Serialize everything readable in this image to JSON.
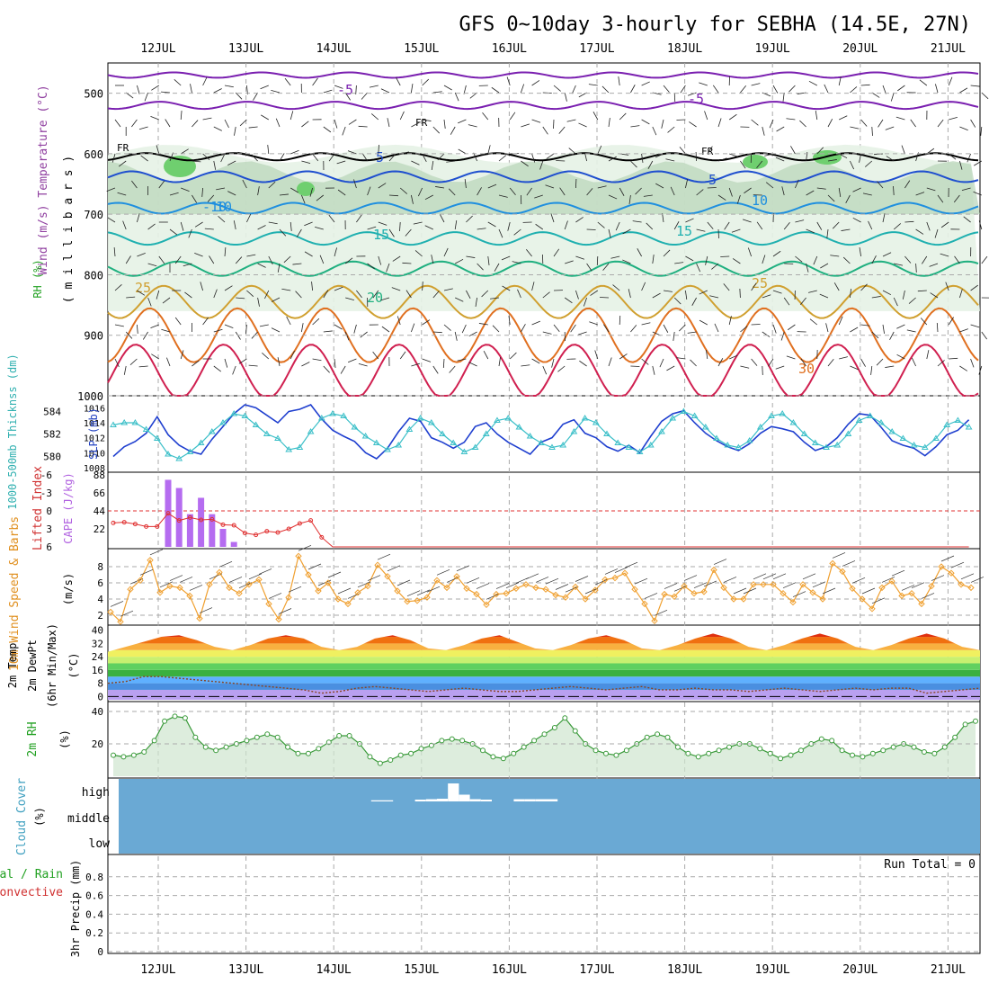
{
  "title": "GFS 0~10day 3-hourly for SEBHA (14.5E, 27N)",
  "days": [
    "12JUL",
    "13JUL",
    "14JUL",
    "15JUL",
    "16JUL",
    "17JUL",
    "18JUL",
    "19JUL",
    "20JUL",
    "21JUL"
  ],
  "colors": {
    "grid": "#aaaaaa",
    "rh_fill": "#e6f2e6",
    "rh_fill2": "#b8d4b8",
    "rh_fill3": "#6fcf6f",
    "slp": "#1f3fcf",
    "thickness": "#3bbfc8",
    "lifted": "#e03030",
    "cape": "#b56cf0",
    "wind": "#f0a030",
    "rh2m_line": "#3a9a3a",
    "rh2m_fill": "#cfe6cf",
    "cloud": "#6aa9d4",
    "freezing": "#000000"
  },
  "panels": {
    "profile": {
      "ylabel_wind": "Wind (m/s)",
      "ylabel_temp": "Temperature (°C)",
      "ylabel_rh": "RH (%)",
      "ylabel_mb": "( m i l l i b a r s )",
      "y_ticks": [
        "500",
        "600",
        "700",
        "800",
        "900",
        "1000"
      ],
      "fr_label": "FR",
      "contour_labels": [
        "-5",
        "-5",
        "-10",
        "5",
        "5",
        "10",
        "10",
        "15",
        "15",
        "20",
        "25",
        "25",
        "30"
      ]
    },
    "slp": {
      "ylabel_thick": "1000-500mb Thicknss (dm)",
      "ylabel_slp": "SLP (mb)",
      "left_ticks": [
        "584",
        "582",
        "580"
      ],
      "right_ticks": [
        "1016",
        "1014",
        "1012",
        "1010",
        "1008"
      ]
    },
    "cape": {
      "ylabel_li": "Lifted Index",
      "ylabel_cape": "CAPE (J/kg)",
      "left_ticks": [
        "-6",
        "-3",
        "0",
        "3",
        "6"
      ],
      "right_ticks": [
        "88",
        "66",
        "44",
        "22"
      ]
    },
    "wind10m": {
      "ylabel": "10m Wind Speed & Barbs",
      "unit": "(m/s)",
      "ticks": [
        "8",
        "6",
        "4",
        "2"
      ]
    },
    "temp2m": {
      "ylabel1": "2m Temp",
      "ylabel2": "2m DewPt",
      "ylabel3": "(6hr Min/Max)",
      "unit": "(°C)",
      "ticks": [
        "40",
        "32",
        "24",
        "16",
        "8",
        "0"
      ]
    },
    "rh2m": {
      "ylabel": "2m RH",
      "unit": "(%)",
      "ticks": [
        "40",
        "20"
      ]
    },
    "cloud": {
      "ylabel": "Cloud Cover",
      "unit": "(%)",
      "levels": [
        "high",
        "middle",
        "low"
      ]
    },
    "precip": {
      "ylabel1": "Total / Rain",
      "ylabel2": "Convective",
      "ylabel3": "3hr Precip (mm)",
      "ticks": [
        "0.8",
        "0.6",
        "0.4",
        "0.2",
        "0"
      ],
      "run_total": "Run Total = 0"
    }
  },
  "chart_data": [
    {
      "type": "line",
      "name": "SLP and 1000-500mb Thickness",
      "x_step_hours": 3,
      "series": [
        {
          "name": "SLP (mb)",
          "values": [
            1009.5,
            1010.8,
            1011.5,
            1012.6,
            1014.8,
            1012.4,
            1011.0,
            1010.2,
            1009.8,
            1011.8,
            1013.5,
            1015.2,
            1016.4,
            1016.0,
            1015.0,
            1014.0,
            1015.5,
            1015.8,
            1016.4,
            1014.5,
            1013.0,
            1012.2,
            1011.5,
            1010.0,
            1009.2,
            1010.6,
            1012.8,
            1014.6,
            1014.2,
            1012.0,
            1011.4,
            1010.6,
            1011.4,
            1013.5,
            1014.0,
            1012.5,
            1011.4,
            1010.6,
            1009.8,
            1011.4,
            1012.0,
            1013.8,
            1014.4,
            1012.6,
            1012.0,
            1010.8,
            1010.2,
            1011.0,
            1010.0,
            1012.2,
            1014.2,
            1015.2,
            1015.6,
            1014.0,
            1012.6,
            1011.6,
            1010.8,
            1010.3,
            1011.2,
            1012.6,
            1013.5,
            1013.2,
            1012.8,
            1011.4,
            1010.3,
            1010.8,
            1012.0,
            1013.8,
            1015.2,
            1015.0,
            1013.4,
            1011.6,
            1011.0,
            1010.6,
            1009.6,
            1010.8,
            1012.4,
            1013.0,
            1014.4
          ]
        },
        {
          "name": "Thickness (dm)",
          "values": [
            582.8,
            583.0,
            583.0,
            582.4,
            581.6,
            580.2,
            579.8,
            580.4,
            581.2,
            582.2,
            583.0,
            583.8,
            583.6,
            582.8,
            582.0,
            581.6,
            580.6,
            580.8,
            582.2,
            583.4,
            583.8,
            583.6,
            582.6,
            581.8,
            581.2,
            580.6,
            581.0,
            582.4,
            583.4,
            583.0,
            582.0,
            581.2,
            580.4,
            580.8,
            582.0,
            583.2,
            583.4,
            582.6,
            581.8,
            581.2,
            580.8,
            581.0,
            582.2,
            583.4,
            583.0,
            582.0,
            581.2,
            580.8,
            580.4,
            581.0,
            582.2,
            583.4,
            584.0,
            583.6,
            582.6,
            581.6,
            581.0,
            580.8,
            581.4,
            582.6,
            583.6,
            583.8,
            583.0,
            582.0,
            581.2,
            580.8,
            581.0,
            582.0,
            583.2,
            583.6,
            583.0,
            582.2,
            581.6,
            581.0,
            580.8,
            581.6,
            582.8,
            583.2,
            582.6
          ]
        }
      ],
      "left_axis": "Thickness (dm)",
      "right_axis": "SLP (mb)",
      "ylim_thick": [
        579,
        585
      ],
      "ylim_slp": [
        1008,
        1017
      ]
    },
    {
      "type": "bar",
      "name": "CAPE and Lifted Index",
      "series": [
        {
          "name": "CAPE (J/kg)",
          "values": [
            0,
            0,
            0,
            0,
            0,
            82,
            72,
            40,
            60,
            40,
            22,
            6,
            0,
            0,
            0,
            0,
            0,
            0,
            0,
            0,
            0,
            0,
            0,
            0,
            0,
            0,
            0,
            0,
            0,
            0,
            0,
            0,
            0,
            0,
            0,
            0,
            0,
            0,
            0,
            0,
            0,
            0,
            0,
            0,
            0,
            0,
            0,
            0,
            0,
            0,
            0,
            0,
            0,
            0,
            0,
            0,
            0,
            0,
            0,
            0,
            0,
            0,
            0,
            0,
            0,
            0,
            0,
            0,
            0,
            0,
            0,
            0,
            0,
            0,
            0,
            0,
            0,
            0,
            0
          ]
        },
        {
          "name": "Lifted Index",
          "values": [
            2,
            1.9,
            2.2,
            2.6,
            2.6,
            0.4,
            1.6,
            1.1,
            1.5,
            1.4,
            2.3,
            2.4,
            3.7,
            4,
            3.4,
            3.6,
            3,
            2.1,
            1.6,
            4.4,
            6,
            6,
            6,
            6,
            6,
            6,
            6,
            6,
            6,
            6,
            6,
            6,
            6,
            6,
            6,
            6,
            6,
            6,
            6,
            6,
            6,
            6,
            6,
            6,
            6,
            6,
            6,
            6,
            6,
            6,
            6,
            6,
            6,
            6,
            6,
            6,
            6,
            6,
            6,
            6,
            6,
            6,
            6,
            6,
            6,
            6,
            6,
            6,
            6,
            6,
            6,
            6,
            6,
            6,
            6,
            6,
            6,
            6,
            6
          ]
        }
      ],
      "ylim_li": [
        -6,
        6
      ],
      "ylim_cape": [
        0,
        88
      ]
    },
    {
      "type": "line",
      "name": "10m Wind Speed",
      "values": [
        2.4,
        1.2,
        5.2,
        6.3,
        8.8,
        4.8,
        5.6,
        5.4,
        4.4,
        1.6,
        5.8,
        7.3,
        5.4,
        4.7,
        5.8,
        6.4,
        3.4,
        1.5,
        4.2,
        9.3,
        7.0,
        5.0,
        6.0,
        4.0,
        3.4,
        4.8,
        5.6,
        8.2,
        6.8,
        5.0,
        3.7,
        3.8,
        4.2,
        6.3,
        5.4,
        6.8,
        5.3,
        4.6,
        3.3,
        4.6,
        4.7,
        5.3,
        5.8,
        5.4,
        5.2,
        4.5,
        4.2,
        5.5,
        4.0,
        5.1,
        6.4,
        6.6,
        7.2,
        5.2,
        3.4,
        1.3,
        4.6,
        4.3,
        5.6,
        4.7,
        4.9,
        7.6,
        5.4,
        4.0,
        4.0,
        5.8,
        5.8,
        5.8,
        4.7,
        3.6,
        5.8,
        4.8,
        4.0,
        8.4,
        7.4,
        5.3,
        4.0,
        2.8,
        5.4,
        6.2,
        4.4,
        4.7,
        3.4,
        5.6,
        8.0,
        7.2,
        5.8,
        5.4
      ],
      "ylim": [
        1,
        10
      ]
    },
    {
      "type": "area",
      "name": "2m Temp and DewPt",
      "temp_max_series": [
        27,
        30,
        33,
        36,
        37,
        34,
        30,
        28,
        31,
        35,
        37,
        35,
        30,
        28,
        30,
        35,
        37,
        34,
        29,
        28,
        31,
        35,
        37,
        33,
        29,
        28,
        31,
        35,
        37,
        34,
        29,
        28,
        31,
        35,
        38,
        35,
        30,
        28,
        31,
        35,
        38,
        35,
        30,
        28,
        31,
        35,
        38,
        35,
        30,
        28
      ],
      "dewpt_series": [
        8,
        9,
        12,
        12,
        11,
        10,
        9,
        8,
        7,
        6,
        5,
        4,
        2,
        3,
        5,
        6,
        5,
        4,
        3,
        4,
        5,
        4,
        3,
        3,
        4,
        5,
        6,
        5,
        4,
        5,
        6,
        4,
        4,
        5,
        4,
        4,
        3,
        4,
        5,
        4,
        3,
        4,
        5,
        4,
        5,
        5,
        2,
        3,
        4,
        5
      ],
      "ylim": [
        -2,
        42
      ]
    },
    {
      "type": "area",
      "name": "2m RH",
      "values": [
        13,
        12,
        13,
        15,
        22,
        34,
        37,
        36,
        24,
        18,
        16,
        18,
        20,
        22,
        24,
        26,
        24,
        18,
        14,
        14,
        17,
        21,
        25,
        25,
        20,
        12,
        8,
        10,
        13,
        14,
        17,
        19,
        22,
        23,
        22,
        20,
        16,
        12,
        11,
        14,
        18,
        22,
        26,
        30,
        36,
        28,
        20,
        16,
        14,
        13,
        16,
        20,
        24,
        26,
        24,
        18,
        14,
        12,
        14,
        16,
        18,
        20,
        20,
        17,
        14,
        11,
        13,
        16,
        20,
        23,
        22,
        16,
        13,
        12,
        14,
        16,
        18,
        20,
        18,
        15,
        14,
        18,
        24,
        32,
        34
      ],
      "ylim": [
        0,
        45
      ]
    },
    {
      "type": "bar",
      "name": "Cloud Cover",
      "high_values": [
        0,
        0,
        0,
        0,
        0,
        0,
        0,
        0,
        0,
        0,
        0,
        0,
        0,
        0,
        0,
        0,
        0,
        0,
        0,
        0,
        0,
        0,
        0,
        0,
        5,
        5,
        0,
        0,
        8,
        10,
        12,
        80,
        30,
        10,
        8,
        0,
        0,
        10,
        10,
        10,
        10,
        0,
        0,
        0,
        0,
        0,
        0,
        0,
        0,
        0,
        0,
        0,
        0,
        0,
        0,
        0,
        0,
        0,
        0,
        0,
        0,
        0,
        0,
        0,
        0,
        0,
        0,
        0,
        0,
        0,
        0,
        0,
        0,
        0,
        0,
        0,
        0,
        0,
        0
      ],
      "ylim": [
        0,
        100
      ]
    },
    {
      "type": "bar",
      "name": "3hr Precip",
      "values": [],
      "ylim": [
        0,
        1
      ]
    }
  ]
}
